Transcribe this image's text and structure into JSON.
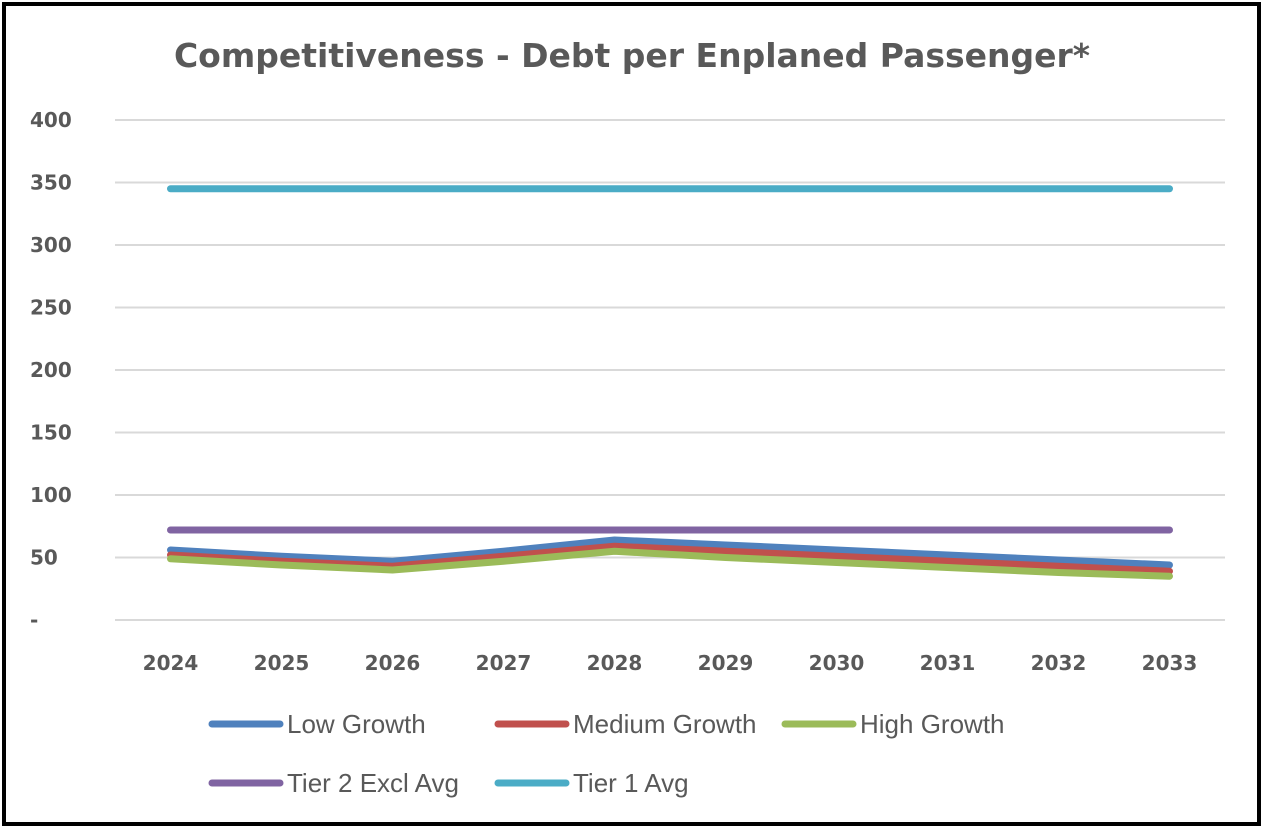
{
  "chart_data": {
    "type": "line",
    "title": "Competitiveness - Debt per Enplaned Passenger*",
    "xlabel": "",
    "ylabel": "",
    "categories": [
      "2024",
      "2025",
      "2026",
      "2027",
      "2028",
      "2029",
      "2030",
      "2031",
      "2032",
      "2033"
    ],
    "ylim": [
      0,
      400
    ],
    "yticks": [
      {
        "value": 0,
        "label": "-"
      },
      {
        "value": 50,
        "label": "50"
      },
      {
        "value": 100,
        "label": "100"
      },
      {
        "value": 150,
        "label": "150"
      },
      {
        "value": 200,
        "label": "200"
      },
      {
        "value": 250,
        "label": "250"
      },
      {
        "value": 300,
        "label": "300"
      },
      {
        "value": 350,
        "label": "350"
      },
      {
        "value": 400,
        "label": "400"
      }
    ],
    "grid": true,
    "legend_position": "bottom",
    "series": [
      {
        "name": "Tier 1 Avg",
        "color": "#4BACC6",
        "values": [
          345,
          345,
          345,
          345,
          345,
          345,
          345,
          345,
          345,
          345
        ]
      },
      {
        "name": "Tier 2 Excl Avg",
        "color": "#8064A2",
        "values": [
          72,
          72,
          72,
          72,
          72,
          72,
          72,
          72,
          72,
          72
        ]
      },
      {
        "name": "Low Growth",
        "color": "#4F81BD",
        "values": [
          56,
          51,
          47,
          55,
          64,
          60,
          56,
          52,
          48,
          44
        ]
      },
      {
        "name": "Medium Growth",
        "color": "#C0504D",
        "values": [
          52,
          47,
          43,
          51,
          59,
          55,
          51,
          47,
          43,
          39
        ]
      },
      {
        "name": "High Growth",
        "color": "#9BBB59",
        "values": [
          49,
          44,
          40,
          47,
          55,
          50,
          46,
          42,
          38,
          35
        ]
      }
    ],
    "legend": [
      [
        "Low Growth",
        "Medium Growth",
        "High Growth"
      ],
      [
        "Tier 2 Excl Avg",
        "Tier 1 Avg"
      ]
    ]
  }
}
